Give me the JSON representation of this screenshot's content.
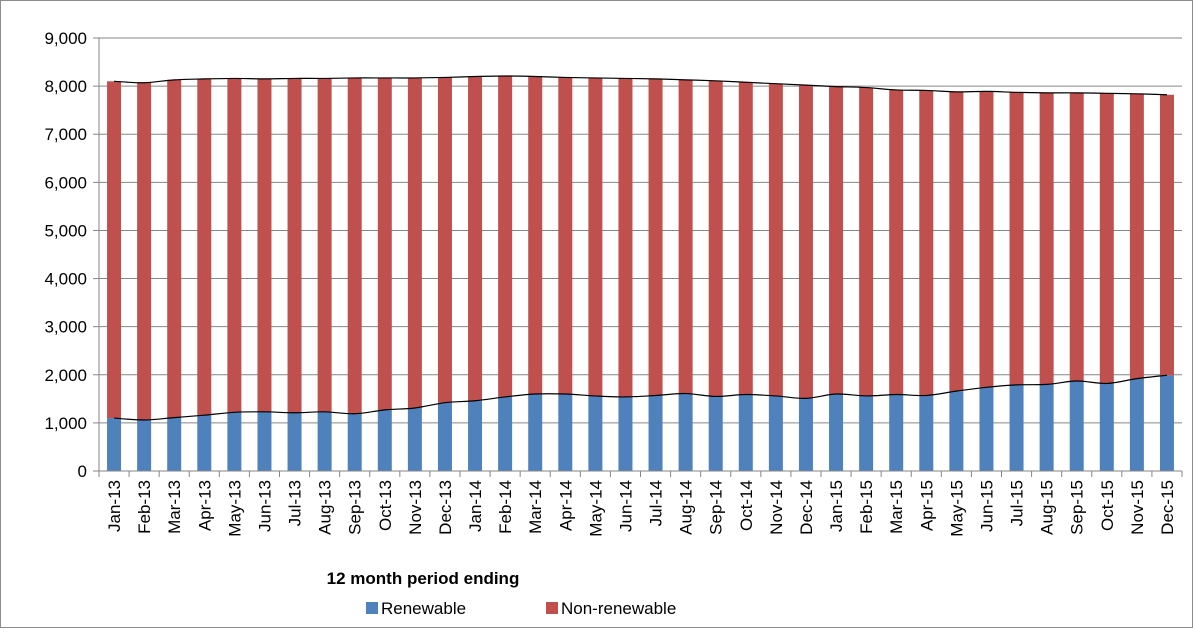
{
  "chart_data": {
    "type": "bar",
    "stacked": true,
    "title": "",
    "xlabel": "12 month period ending",
    "ylabel": "",
    "ylim": [
      0,
      9000
    ],
    "yticks": [
      0,
      1000,
      2000,
      3000,
      4000,
      5000,
      6000,
      7000,
      8000,
      9000
    ],
    "ytick_labels": [
      "0",
      "1,000",
      "2,000",
      "3,000",
      "4,000",
      "5,000",
      "6,000",
      "7,000",
      "8,000",
      "9,000"
    ],
    "grid": true,
    "legend_position": "bottom",
    "categories": [
      "Jan-13",
      "Feb-13",
      "Mar-13",
      "Apr-13",
      "May-13",
      "Jun-13",
      "Jul-13",
      "Aug-13",
      "Sep-13",
      "Oct-13",
      "Nov-13",
      "Dec-13",
      "Jan-14",
      "Feb-14",
      "Mar-14",
      "Apr-14",
      "May-14",
      "Jun-14",
      "Jul-14",
      "Aug-14",
      "Sep-14",
      "Oct-14",
      "Nov-14",
      "Dec-14",
      "Jan-15",
      "Feb-15",
      "Mar-15",
      "Apr-15",
      "May-15",
      "Jun-15",
      "Jul-15",
      "Aug-15",
      "Sep-15",
      "Oct-15",
      "Nov-15",
      "Dec-15"
    ],
    "series": [
      {
        "name": "Renewable",
        "color": "#4f81bd",
        "values": [
          1100,
          1060,
          1110,
          1160,
          1220,
          1230,
          1210,
          1230,
          1190,
          1270,
          1310,
          1420,
          1460,
          1540,
          1600,
          1600,
          1560,
          1540,
          1570,
          1610,
          1550,
          1590,
          1560,
          1510,
          1600,
          1560,
          1590,
          1570,
          1660,
          1740,
          1790,
          1800,
          1870,
          1820,
          1920,
          1990
        ]
      },
      {
        "name": "Non-renewable",
        "color": "#c0504d",
        "values": [
          7000,
          7010,
          7020,
          6990,
          6940,
          6920,
          6950,
          6930,
          6980,
          6900,
          6860,
          6760,
          6740,
          6670,
          6600,
          6580,
          6610,
          6620,
          6580,
          6520,
          6560,
          6490,
          6490,
          6510,
          6390,
          6410,
          6330,
          6340,
          6220,
          6150,
          6080,
          6060,
          5990,
          6030,
          5920,
          5830
        ]
      }
    ],
    "trend_line_color": "#000000"
  }
}
